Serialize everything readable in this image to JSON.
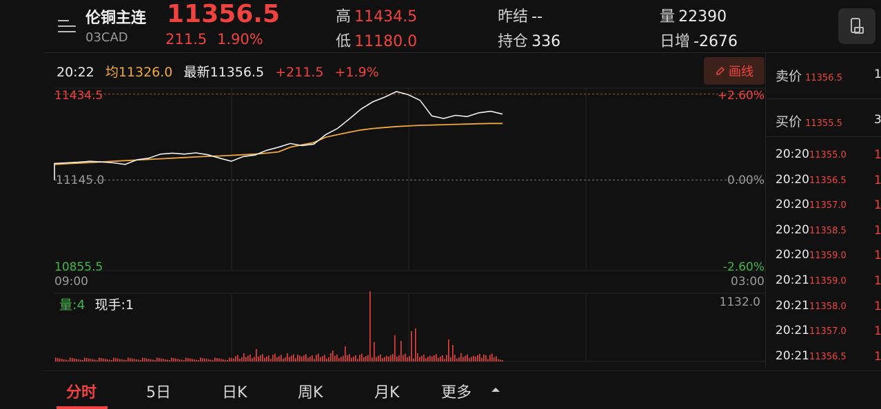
{
  "header": {
    "name": "伦铜主连",
    "code": "03CAD",
    "last": "11356.5",
    "change": "211.5",
    "change_pct": "1.90%",
    "high_label": "高",
    "high": "11434.5",
    "low_label": "低",
    "low": "11180.0",
    "prev_settle_label": "昨结",
    "prev_settle": "--",
    "open_interest_label": "持仓",
    "open_interest": "336",
    "volume_label": "量",
    "volume": "22390",
    "daily_incr_label": "日增",
    "daily_incr": "-2676"
  },
  "info": {
    "time": "20:22",
    "avg_label": "均",
    "avg": "11326.0",
    "latest_label": "最新",
    "latest": "11356.5",
    "change": "+211.5",
    "change_pct": "+1.9%",
    "draw_label": "画线"
  },
  "chart": {
    "price_high": "11434.5",
    "price_base": "11145.0",
    "price_low": "10855.5",
    "pct_high": "+2.60%",
    "pct_base": "0.00%",
    "pct_low": "-2.60%",
    "time_start": "09:00",
    "time_end": "03:00",
    "vol_label": "量:4",
    "hand_label": "现手:1",
    "vol_max": "1132.0"
  },
  "right_panel": {
    "ask_label": "卖价",
    "ask": "11356.5",
    "bid_label": "买价",
    "bid": "11355.5",
    "trades": [
      {
        "time": "20:20",
        "price": "11355.0"
      },
      {
        "time": "20:20",
        "price": "11356.5"
      },
      {
        "time": "20:20",
        "price": "11357.0"
      },
      {
        "time": "20:20",
        "price": "11358.5"
      },
      {
        "time": "20:20",
        "price": "11359.0"
      },
      {
        "time": "20:21",
        "price": "11359.0"
      },
      {
        "time": "20:21",
        "price": "11358.0"
      },
      {
        "time": "20:21",
        "price": "11357.0"
      },
      {
        "time": "20:21",
        "price": "11356.5"
      }
    ]
  },
  "tabs": [
    "分时",
    "5日",
    "日K",
    "周K",
    "月K",
    "更多"
  ],
  "colors": {
    "up": "#f0433f",
    "down": "#3fb54a",
    "avg": "#f2a93b",
    "bg": "#111111"
  },
  "chart_data": {
    "type": "line",
    "y_range": [
      10855.5,
      11434.5
    ],
    "base": 11145.0,
    "series": [
      {
        "values": [
          11198,
          11200,
          11202,
          11205,
          11203,
          11200,
          11195,
          11210,
          11215,
          11228,
          11231,
          11228,
          11232,
          11226,
          11215,
          11205,
          11220,
          11225,
          11240,
          11250,
          11262,
          11255,
          11260,
          11290,
          11310,
          11340,
          11372,
          11395,
          11410,
          11428,
          11418,
          11400,
          11350,
          11342,
          11352,
          11348,
          11360,
          11365,
          11356
        ]
      },
      {
        "values": [
          11195,
          11197,
          11199,
          11201,
          11203,
          11205,
          11207,
          11209,
          11211,
          11213,
          11215,
          11217,
          11219,
          11221,
          11222,
          11224,
          11226,
          11228,
          11231,
          11235,
          11250,
          11258,
          11265,
          11282,
          11290,
          11298,
          11305,
          11310,
          11313,
          11316,
          11318,
          11320,
          11321,
          11322,
          11323,
          11324,
          11325,
          11326,
          11326
        ]
      }
    ]
  }
}
